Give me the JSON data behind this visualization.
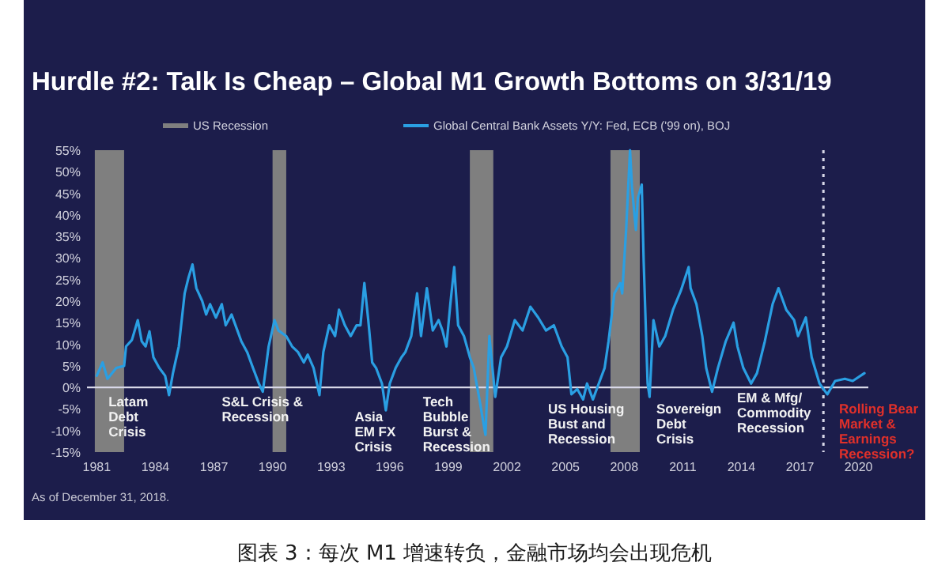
{
  "chart_data": {
    "type": "line",
    "title": "Hurdle #2:  Talk Is Cheap – Global M1 Growth Bottoms on 3/31/19",
    "x": [
      1981.0,
      1981.3,
      1981.55,
      1982.0,
      1982.4,
      1982.5,
      1982.8,
      1983.1,
      1983.3,
      1983.5,
      1983.7,
      1983.9,
      1984.2,
      1984.5,
      1984.7,
      1984.9,
      1985.2,
      1985.5,
      1985.7,
      1985.9,
      1986.1,
      1986.4,
      1986.6,
      1986.8,
      1987.1,
      1987.4,
      1987.6,
      1987.9,
      1988.2,
      1988.4,
      1988.7,
      1989.0,
      1989.3,
      1989.5,
      1989.8,
      1990.1,
      1990.3,
      1990.7,
      1991.0,
      1991.3,
      1991.6,
      1991.8,
      1992.1,
      1992.4,
      1992.6,
      1992.9,
      1993.2,
      1993.4,
      1993.7,
      1994.0,
      1994.3,
      1994.5,
      1994.7,
      1994.9,
      1995.1,
      1995.3,
      1995.6,
      1995.8,
      1996.0,
      1996.3,
      1996.6,
      1996.8,
      1997.1,
      1997.4,
      1997.6,
      1997.9,
      1998.2,
      1998.5,
      1998.7,
      1998.9,
      1999.1,
      1999.3,
      1999.5,
      1999.8,
      2000.1,
      2000.3,
      2000.6,
      2000.9,
      2001.1,
      2001.4,
      2001.7,
      2002.0,
      2002.4,
      2002.8,
      2003.2,
      2003.6,
      2004.0,
      2004.4,
      2004.8,
      2005.1,
      2005.3,
      2005.6,
      2005.9,
      2006.1,
      2006.4,
      2006.7,
      2007.0,
      2007.2,
      2007.5,
      2007.8,
      2007.9,
      2008.1,
      2008.3,
      2008.4,
      2008.6,
      2008.7,
      2008.9,
      2009.0,
      2009.2,
      2009.3,
      2009.5,
      2009.8,
      2010.1,
      2010.5,
      2010.9,
      2011.3,
      2011.4,
      2011.7,
      2012.0,
      2012.2,
      2012.5,
      2012.8,
      2013.2,
      2013.6,
      2013.8,
      2014.1,
      2014.5,
      2014.8,
      2015.2,
      2015.6,
      2015.9,
      2016.3,
      2016.7,
      2016.9,
      2017.3,
      2017.6,
      2018.0,
      2018.4,
      2018.8,
      2019.3,
      2019.7,
      2020.3
    ],
    "series": [
      {
        "name": "Global Central Bank Assets Y/Y: Fed, ECB ('99 on), BOJ",
        "color": "#2a9fe3",
        "values": [
          2.7,
          5.8,
          2,
          4.5,
          5,
          9.5,
          11,
          15.6,
          10.7,
          9.5,
          13,
          7,
          4.5,
          2.7,
          -1.8,
          3.3,
          9.5,
          21.8,
          25.5,
          28.5,
          23,
          20,
          16.9,
          19.3,
          16.2,
          19.3,
          14.4,
          16.9,
          13.2,
          10.7,
          8.2,
          4.5,
          0.9,
          -1,
          9.5,
          15.6,
          13.2,
          11.9,
          9.5,
          8.2,
          5.8,
          7.6,
          4.5,
          -1.8,
          8.2,
          14.4,
          11.9,
          18,
          14.4,
          11.9,
          14.4,
          14.4,
          24.2,
          15.6,
          5.8,
          4.5,
          0.9,
          -5.3,
          0.9,
          4.5,
          7,
          8.2,
          11.9,
          21.8,
          11.9,
          23,
          13.2,
          15.6,
          13.2,
          9.5,
          19.3,
          27.9,
          14.4,
          11.9,
          7,
          4.5,
          -3,
          -11,
          11.9,
          -2.2,
          7,
          9.5,
          15.6,
          13.2,
          18.7,
          16.2,
          13.2,
          14.4,
          9.5,
          7,
          -1.6,
          -0.4,
          -2.8,
          0.9,
          -2.8,
          0.9,
          4.5,
          10.7,
          21.8,
          24.2,
          21.8,
          36.5,
          55,
          46.4,
          36.5,
          43.9,
          47,
          29,
          0.9,
          -2.2,
          15.6,
          9.5,
          11.9,
          18,
          22.4,
          27.9,
          23,
          19.3,
          11.9,
          4.5,
          -1,
          4.5,
          10.7,
          15,
          9.5,
          4.5,
          0.9,
          3.3,
          10.7,
          19.3,
          23,
          18,
          15.6,
          11.9,
          16.2,
          7,
          0.9,
          -1.6,
          1.5,
          2,
          1.5,
          3.3
        ]
      }
    ],
    "bands": [
      {
        "axis": "x",
        "from": 1980.9,
        "to": 1982.4,
        "label": "US Recession",
        "color": "#7f7f7f"
      },
      {
        "axis": "x",
        "from": 1990.0,
        "to": 1990.7,
        "color": "#7f7f7f"
      },
      {
        "axis": "x",
        "from": 2000.1,
        "to": 2001.3,
        "color": "#7f7f7f"
      },
      {
        "axis": "x",
        "from": 2007.3,
        "to": 2008.8,
        "color": "#7f7f7f"
      }
    ],
    "ref_lines": [
      {
        "axis": "y",
        "value": 0,
        "color": "#d8d8e8",
        "line_style": "solid"
      },
      {
        "axis": "x",
        "value": 2018.2,
        "color": "#d8d8e8",
        "line_style": "dotted"
      }
    ],
    "xlim": [
      1980.5,
      2020.5
    ],
    "xticks": [
      1981,
      1984,
      1987,
      1990,
      1993,
      1996,
      1999,
      2002,
      2005,
      2008,
      2011,
      2014,
      2017,
      2020
    ],
    "ylim": [
      -15,
      55
    ],
    "yticks": [
      {
        "value": -15,
        "label": "-15%"
      },
      {
        "value": -10,
        "label": "-10%"
      },
      {
        "value": -5,
        "label": "-5%"
      },
      {
        "value": 0,
        "label": "0%"
      },
      {
        "value": 5,
        "label": "5%"
      },
      {
        "value": 10,
        "label": "10%"
      },
      {
        "value": 15,
        "label": "15%"
      },
      {
        "value": 20,
        "label": "20%"
      },
      {
        "value": 25,
        "label": "25%"
      },
      {
        "value": 30,
        "label": "30%"
      },
      {
        "value": 35,
        "label": "35%"
      },
      {
        "value": 40,
        "label": "40%"
      },
      {
        "value": 45,
        "label": "45%"
      },
      {
        "value": 50,
        "label": "50%"
      },
      {
        "value": 55,
        "label": "55%"
      }
    ],
    "grid": false,
    "legend": "top",
    "annotations": [
      "Latam\nDebt\nCrisis",
      "S&L Crisis &\nRecession",
      "Asia\nEM FX\nCrisis",
      "Tech\nBubble\nBurst &\nRecession",
      "US Housing\nBust and\nRecession",
      "Sovereign\nDebt\nCrisis",
      "EM & Mfg/\nCommodity\nRecession",
      "Rolling Bear\nMarket &\nEarnings\nRecession?",
      "As of December 31, 2018.",
      "图表 3：每次 M1 增速转负，金融市场均会出现危机"
    ]
  }
}
